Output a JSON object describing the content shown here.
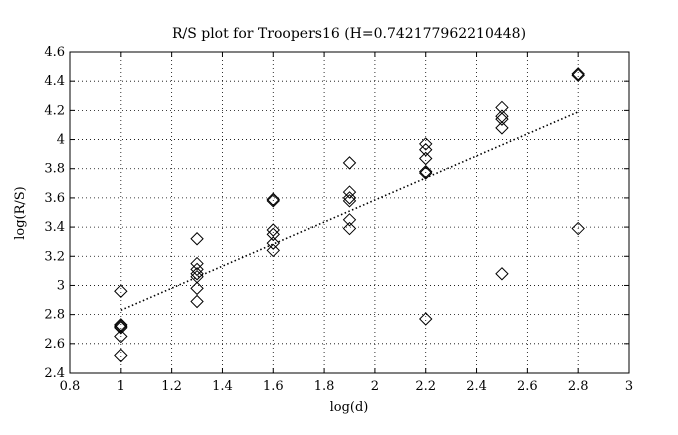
{
  "chart_data": {
    "type": "scatter",
    "title": "R/S plot for Troopers16 (H=0.742177962210448)",
    "xlabel": "log(d)",
    "ylabel": "log(R/S)",
    "xlim": [
      0.8,
      3.0
    ],
    "ylim": [
      2.4,
      4.6
    ],
    "xticks": [
      0.8,
      1.0,
      1.2,
      1.4,
      1.6,
      1.8,
      2.0,
      2.2,
      2.4,
      2.6,
      2.8,
      3.0
    ],
    "yticks": [
      2.4,
      2.6,
      2.8,
      3.0,
      3.2,
      3.4,
      3.6,
      3.8,
      4.0,
      4.2,
      4.4,
      4.6
    ],
    "xtick_labels": [
      "0.8",
      "1",
      "1.2",
      "1.4",
      "1.6",
      "1.8",
      "2",
      "2.2",
      "2.4",
      "2.6",
      "2.8",
      "3"
    ],
    "ytick_labels": [
      "2.4",
      "2.6",
      "2.8",
      "3",
      "3.2",
      "3.4",
      "3.6",
      "3.8",
      "4",
      "4.2",
      "4.4",
      "4.6"
    ],
    "grid": true,
    "legend": "none",
    "marker": "diamond-open",
    "series": [
      {
        "points": [
          [
            1.0,
            2.96
          ],
          [
            1.0,
            2.73
          ],
          [
            1.0,
            2.72
          ],
          [
            1.0,
            2.71
          ],
          [
            1.0,
            2.65
          ],
          [
            1.0,
            2.52
          ],
          [
            1.3,
            3.32
          ],
          [
            1.3,
            3.15
          ],
          [
            1.3,
            3.11
          ],
          [
            1.3,
            3.08
          ],
          [
            1.3,
            3.06
          ],
          [
            1.3,
            2.98
          ],
          [
            1.3,
            2.89
          ],
          [
            1.6,
            3.59
          ],
          [
            1.6,
            3.58
          ],
          [
            1.6,
            3.38
          ],
          [
            1.6,
            3.35
          ],
          [
            1.6,
            3.29
          ],
          [
            1.6,
            3.24
          ],
          [
            1.9,
            3.84
          ],
          [
            1.9,
            3.64
          ],
          [
            1.9,
            3.6
          ],
          [
            1.9,
            3.58
          ],
          [
            1.9,
            3.45
          ],
          [
            1.9,
            3.39
          ],
          [
            2.2,
            3.97
          ],
          [
            2.2,
            3.93
          ],
          [
            2.2,
            3.87
          ],
          [
            2.2,
            3.78
          ],
          [
            2.2,
            3.77
          ],
          [
            2.2,
            2.77
          ],
          [
            2.5,
            4.22
          ],
          [
            2.5,
            4.16
          ],
          [
            2.5,
            4.14
          ],
          [
            2.5,
            4.08
          ],
          [
            2.5,
            3.08
          ],
          [
            2.8,
            4.45
          ],
          [
            2.8,
            4.44
          ],
          [
            2.8,
            3.39
          ]
        ]
      },
      {
        "type": "line",
        "style": "dotted",
        "x": [
          1.0,
          2.8
        ],
        "y": [
          2.83,
          4.19
        ]
      }
    ]
  }
}
